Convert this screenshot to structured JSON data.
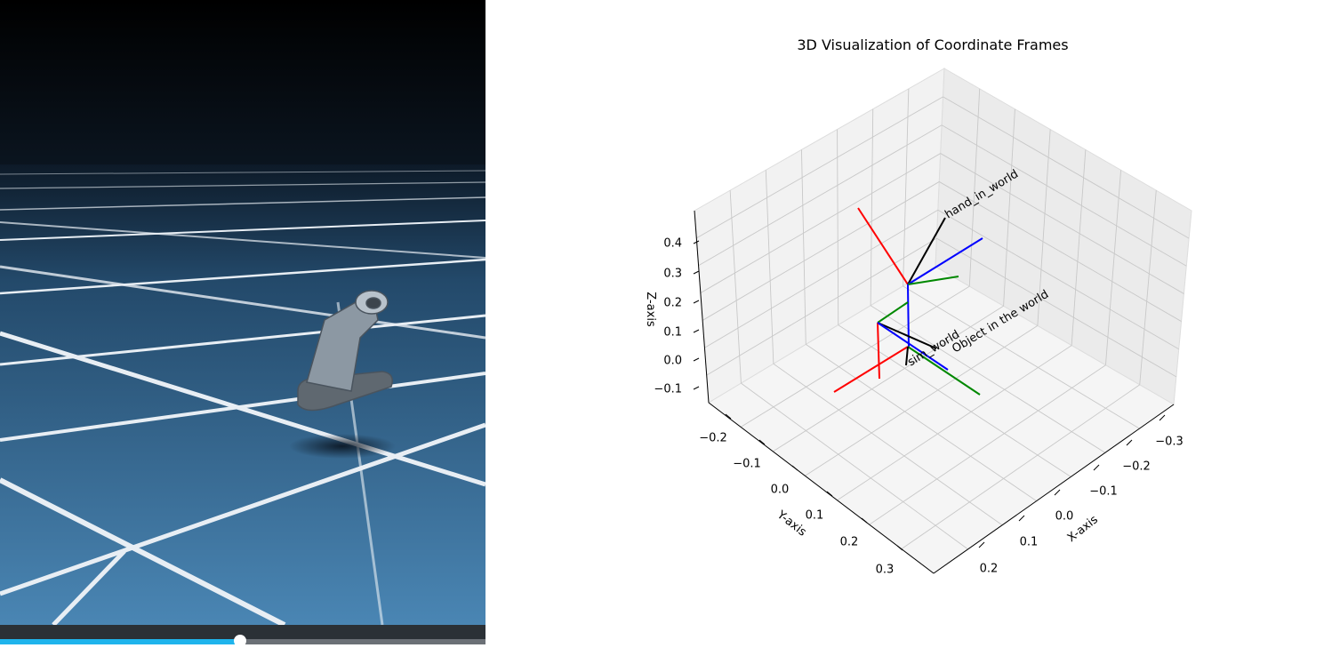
{
  "plot": {
    "title": "3D Visualization of Coordinate Frames",
    "z_axis": {
      "label": "Z-axis",
      "ticks": [
        "0.4",
        "0.3",
        "0.2",
        "0.1",
        "0.0",
        "−0.1"
      ]
    },
    "y_axis": {
      "label": "Y-axis",
      "ticks": [
        "−0.2",
        "−0.1",
        "0.0",
        "0.1",
        "0.2",
        "0.3"
      ]
    },
    "x_axis": {
      "label": "X-axis",
      "ticks": [
        "−0.3",
        "−0.2",
        "−0.1",
        "0.0",
        "0.1",
        "0.2"
      ]
    },
    "frame_labels": [
      "hand_in_world",
      "Object in the world",
      "sim_world"
    ]
  }
}
